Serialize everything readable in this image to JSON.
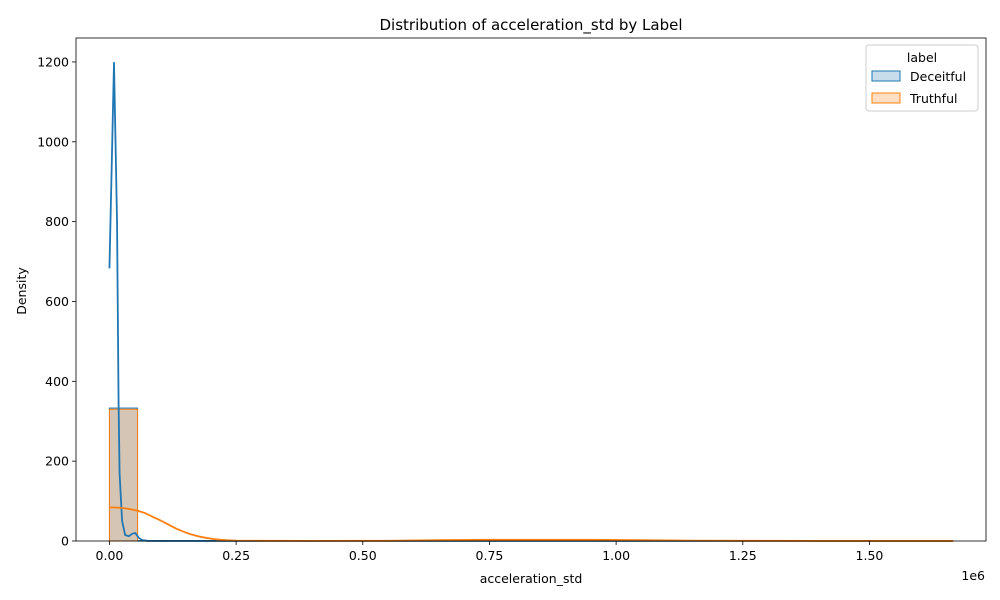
{
  "chart_data": {
    "type": "histogram",
    "title": "Distribution of acceleration_std by Label",
    "xlabel": "acceleration_std",
    "ylabel": "Density",
    "x_offset_label": "1e6",
    "xlim": [
      -66000,
      1730000
    ],
    "ylim": [
      0,
      1260
    ],
    "x_ticks": [
      0.0,
      0.25,
      0.5,
      0.75,
      1.0,
      1.25,
      1.5
    ],
    "x_tick_labels": [
      "0.00",
      "0.25",
      "0.50",
      "0.75",
      "1.00",
      "1.25",
      "1.50"
    ],
    "y_ticks": [
      0,
      200,
      400,
      600,
      800,
      1000,
      1200
    ],
    "y_tick_labels": [
      "0",
      "200",
      "400",
      "600",
      "800",
      "1000",
      "1200"
    ],
    "grid": false,
    "legend": {
      "title": "label",
      "placement": "top-right"
    },
    "bin_width": 55500,
    "series": [
      {
        "name": "Deceitful",
        "color": "#1f77b4",
        "histogram": [
          {
            "x0": 0,
            "x1": 55500,
            "density": 333
          },
          {
            "x0": 55500,
            "x1": 111000,
            "density": 1
          }
        ],
        "kde": [
          [
            0,
            683
          ],
          [
            9000,
            1198
          ],
          [
            15000,
            800
          ],
          [
            18000,
            350
          ],
          [
            20000,
            170
          ],
          [
            25000,
            50
          ],
          [
            31000,
            15
          ],
          [
            38000,
            12
          ],
          [
            45000,
            18
          ],
          [
            51000,
            20
          ],
          [
            58000,
            8
          ],
          [
            65000,
            2
          ],
          [
            75000,
            0.5
          ],
          [
            100000,
            0.2
          ],
          [
            500000,
            0.1
          ],
          [
            1000000,
            0.1
          ],
          [
            1500000,
            0.1
          ],
          [
            1665000,
            0.1
          ]
        ]
      },
      {
        "name": "Truthful",
        "color": "#ff7f0e",
        "histogram": [
          {
            "x0": 0,
            "x1": 55500,
            "density": 330
          }
        ],
        "kde": [
          [
            0,
            84
          ],
          [
            10000,
            84
          ],
          [
            25000,
            83
          ],
          [
            40000,
            80
          ],
          [
            55000,
            76
          ],
          [
            70000,
            70
          ],
          [
            85000,
            61
          ],
          [
            100000,
            52
          ],
          [
            115000,
            42
          ],
          [
            130000,
            32
          ],
          [
            145000,
            24
          ],
          [
            160000,
            17
          ],
          [
            175000,
            12
          ],
          [
            190000,
            8
          ],
          [
            210000,
            4
          ],
          [
            230000,
            2
          ],
          [
            250000,
            1
          ],
          [
            300000,
            0.5
          ],
          [
            400000,
            0.3
          ],
          [
            550000,
            0.5
          ],
          [
            650000,
            2
          ],
          [
            750000,
            3
          ],
          [
            850000,
            3
          ],
          [
            950000,
            3
          ],
          [
            1050000,
            2
          ],
          [
            1150000,
            1
          ],
          [
            1250000,
            0.5
          ],
          [
            1400000,
            0.2
          ],
          [
            1600000,
            0.1
          ],
          [
            1665000,
            0.1
          ]
        ]
      }
    ]
  }
}
